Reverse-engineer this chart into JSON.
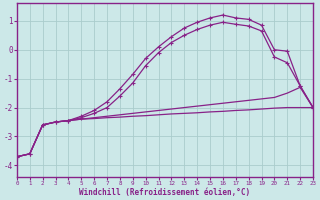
{
  "xlabel": "Windchill (Refroidissement éolien,°C)",
  "bg_color": "#cce8e8",
  "grid_color": "#aacccc",
  "line_color": "#882288",
  "xlim": [
    0,
    23
  ],
  "ylim": [
    -4.4,
    1.6
  ],
  "xticks": [
    0,
    1,
    2,
    3,
    4,
    5,
    6,
    7,
    8,
    9,
    10,
    11,
    12,
    13,
    14,
    15,
    16,
    17,
    18,
    19,
    20,
    21,
    22,
    23
  ],
  "yticks": [
    -4,
    -3,
    -2,
    -1,
    0,
    1
  ],
  "line1_x": [
    0,
    1,
    2,
    3,
    4,
    5,
    6,
    7,
    8,
    9,
    10,
    11,
    12,
    13,
    14,
    15,
    16,
    17,
    18,
    19,
    20,
    21,
    22,
    23
  ],
  "line1_y": [
    -3.7,
    -3.6,
    -2.6,
    -2.5,
    -2.45,
    -2.4,
    -2.38,
    -2.35,
    -2.33,
    -2.3,
    -2.28,
    -2.25,
    -2.22,
    -2.2,
    -2.18,
    -2.15,
    -2.13,
    -2.1,
    -2.08,
    -2.05,
    -2.02,
    -2.0,
    -2.0,
    -2.0
  ],
  "line2_x": [
    0,
    1,
    2,
    3,
    4,
    5,
    6,
    7,
    8,
    9,
    10,
    11,
    12,
    13,
    14,
    15,
    16,
    17,
    18,
    19,
    20,
    21,
    22,
    23
  ],
  "line2_y": [
    -3.7,
    -3.6,
    -2.6,
    -2.5,
    -2.45,
    -2.4,
    -2.35,
    -2.3,
    -2.25,
    -2.2,
    -2.15,
    -2.1,
    -2.05,
    -2.0,
    -1.95,
    -1.9,
    -1.85,
    -1.8,
    -1.75,
    -1.7,
    -1.65,
    -1.5,
    -1.3,
    -2.0
  ],
  "line3_x": [
    0,
    1,
    2,
    3,
    4,
    5,
    6,
    7,
    8,
    9,
    10,
    11,
    12,
    13,
    14,
    15,
    16,
    17,
    18,
    19,
    20,
    21,
    22,
    23
  ],
  "line3_y": [
    -3.7,
    -3.6,
    -2.6,
    -2.5,
    -2.45,
    -2.3,
    -2.1,
    -1.8,
    -1.35,
    -0.85,
    -0.3,
    0.1,
    0.45,
    0.75,
    0.95,
    1.1,
    1.2,
    1.1,
    1.05,
    0.85,
    0.0,
    -0.05,
    -1.25,
    -2.0
  ],
  "line4_x": [
    0,
    1,
    2,
    3,
    4,
    5,
    6,
    7,
    8,
    9,
    10,
    11,
    12,
    13,
    14,
    15,
    16,
    17,
    18,
    19,
    20,
    21,
    22,
    23
  ],
  "line4_y": [
    -3.7,
    -3.6,
    -2.6,
    -2.5,
    -2.45,
    -2.35,
    -2.2,
    -2.0,
    -1.6,
    -1.15,
    -0.55,
    -0.1,
    0.25,
    0.5,
    0.7,
    0.85,
    0.95,
    0.88,
    0.82,
    0.65,
    -0.25,
    -0.45,
    -1.25,
    -2.0
  ]
}
